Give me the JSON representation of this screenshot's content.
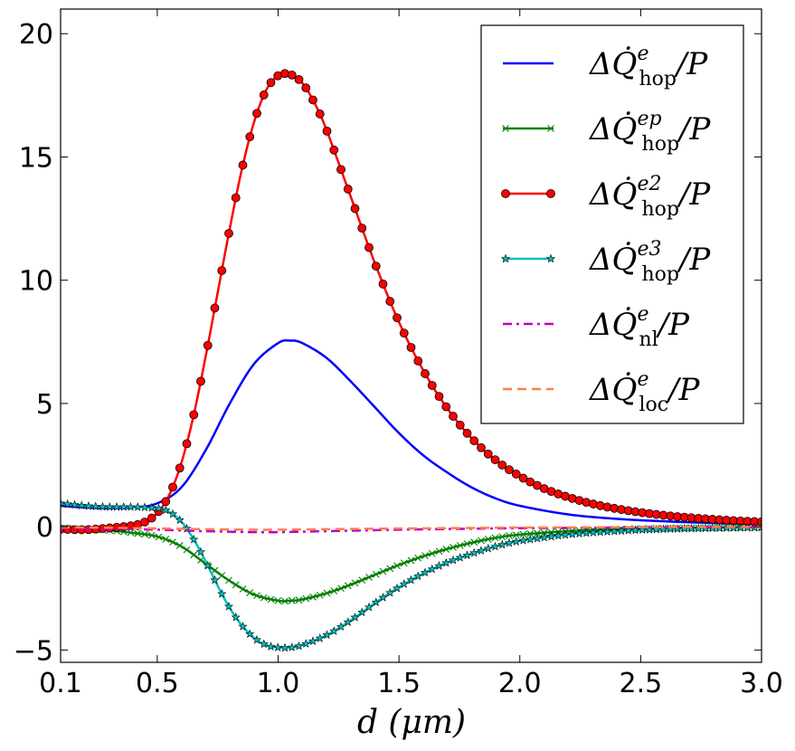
{
  "chart_data": {
    "type": "line",
    "title": "",
    "xlabel": "d (μm)",
    "ylabel": "",
    "xlim": [
      0.1,
      3.0
    ],
    "ylim": [
      -5.5,
      21
    ],
    "x_ticks": [
      0.1,
      0.5,
      1.0,
      1.5,
      2.0,
      2.5,
      3.0
    ],
    "x_tick_labels": [
      "0.1",
      "0.5",
      "1.0",
      "1.5",
      "2.0",
      "2.5",
      "3.0"
    ],
    "y_ticks": [
      -5,
      0,
      5,
      10,
      15,
      20
    ],
    "y_tick_labels": [
      "−5",
      "0",
      "5",
      "10",
      "15",
      "20"
    ],
    "legend_position": "top-right",
    "series": [
      {
        "name": "ΔQ̇^e_hop/P",
        "legend_main": "ΔQ̇",
        "legend_sup": "e",
        "legend_sub": "hop",
        "legend_tail": "/P",
        "color": "#0000ff",
        "style": "solid",
        "marker": "none",
        "x": [
          0.1,
          0.2,
          0.3,
          0.4,
          0.5,
          0.6,
          0.7,
          0.8,
          0.9,
          1.0,
          1.05,
          1.1,
          1.2,
          1.3,
          1.4,
          1.5,
          1.6,
          1.7,
          1.8,
          1.9,
          2.0,
          2.2,
          2.4,
          2.6,
          2.8,
          3.0
        ],
        "y": [
          0.85,
          0.78,
          0.75,
          0.78,
          0.95,
          1.6,
          3.1,
          5.0,
          6.6,
          7.45,
          7.55,
          7.45,
          6.85,
          5.9,
          4.85,
          3.8,
          2.9,
          2.2,
          1.6,
          1.15,
          0.85,
          0.5,
          0.32,
          0.22,
          0.15,
          0.1
        ]
      },
      {
        "name": "ΔQ̇^ep_hop/P",
        "legend_main": "ΔQ̇",
        "legend_sup": "ep",
        "legend_sub": "hop",
        "legend_tail": "/P",
        "color": "#008000",
        "style": "solid",
        "marker": "x",
        "x": [
          0.1,
          0.2,
          0.3,
          0.4,
          0.5,
          0.6,
          0.7,
          0.8,
          0.9,
          1.0,
          1.05,
          1.1,
          1.2,
          1.3,
          1.4,
          1.5,
          1.6,
          1.7,
          1.8,
          1.9,
          2.0,
          2.2,
          2.4,
          2.6,
          2.8,
          3.0
        ],
        "y": [
          -0.05,
          -0.1,
          -0.15,
          -0.25,
          -0.4,
          -0.8,
          -1.5,
          -2.2,
          -2.75,
          -3.0,
          -3.0,
          -2.95,
          -2.7,
          -2.35,
          -1.95,
          -1.55,
          -1.2,
          -0.9,
          -0.65,
          -0.45,
          -0.32,
          -0.18,
          -0.1,
          -0.06,
          -0.04,
          -0.03
        ]
      },
      {
        "name": "ΔQ̇^e2_hop/P",
        "legend_main": "ΔQ̇",
        "legend_sup": "e2",
        "legend_sub": "hop",
        "legend_tail": "/P",
        "color": "#ff0000",
        "style": "solid",
        "marker": "o",
        "x": [
          0.1,
          0.2,
          0.3,
          0.4,
          0.45,
          0.5,
          0.55,
          0.6,
          0.65,
          0.7,
          0.75,
          0.8,
          0.85,
          0.9,
          0.95,
          1.0,
          1.05,
          1.1,
          1.15,
          1.2,
          1.3,
          1.4,
          1.5,
          1.6,
          1.7,
          1.8,
          1.9,
          2.0,
          2.1,
          2.2,
          2.3,
          2.4,
          2.5,
          2.6,
          2.7,
          2.8,
          2.9,
          3.0
        ],
        "y": [
          -0.1,
          -0.12,
          -0.05,
          0.05,
          0.2,
          0.55,
          1.3,
          2.6,
          4.5,
          6.9,
          9.5,
          12.1,
          14.5,
          16.4,
          17.7,
          18.3,
          18.35,
          18.0,
          17.2,
          16.1,
          13.4,
          10.7,
          8.3,
          6.35,
          4.8,
          3.6,
          2.7,
          2.05,
          1.55,
          1.2,
          0.93,
          0.73,
          0.58,
          0.46,
          0.37,
          0.3,
          0.24,
          0.2
        ]
      },
      {
        "name": "ΔQ̇^e3_hop/P",
        "legend_main": "ΔQ̇",
        "legend_sup": "e3",
        "legend_sub": "hop",
        "legend_tail": "/P",
        "color": "#00bfbf",
        "style": "solid",
        "marker": "*",
        "x": [
          0.1,
          0.2,
          0.3,
          0.4,
          0.5,
          0.55,
          0.6,
          0.65,
          0.7,
          0.75,
          0.8,
          0.85,
          0.9,
          0.95,
          1.0,
          1.05,
          1.1,
          1.2,
          1.3,
          1.4,
          1.5,
          1.6,
          1.7,
          1.8,
          1.9,
          2.0,
          2.2,
          2.4,
          2.6,
          2.8,
          3.0
        ],
        "y": [
          0.95,
          0.85,
          0.8,
          0.8,
          0.75,
          0.6,
          0.2,
          -0.5,
          -1.4,
          -2.4,
          -3.3,
          -4.0,
          -4.5,
          -4.8,
          -4.9,
          -4.9,
          -4.8,
          -4.4,
          -3.8,
          -3.1,
          -2.45,
          -1.9,
          -1.45,
          -1.1,
          -0.8,
          -0.58,
          -0.32,
          -0.18,
          -0.1,
          -0.06,
          -0.03
        ]
      },
      {
        "name": "ΔQ̇^e_nl/P",
        "legend_main": "ΔQ̇",
        "legend_sup": "e",
        "legend_sub": "nl",
        "legend_tail": "/P",
        "color": "#bf00bf",
        "style": "dashdot",
        "marker": "none",
        "x": [
          0.1,
          0.3,
          0.5,
          0.7,
          0.9,
          1.0,
          1.1,
          1.3,
          1.5,
          1.8,
          2.0,
          2.5,
          3.0
        ],
        "y": [
          -0.05,
          -0.08,
          -0.12,
          -0.18,
          -0.22,
          -0.22,
          -0.2,
          -0.16,
          -0.12,
          -0.08,
          -0.06,
          -0.03,
          -0.02
        ]
      },
      {
        "name": "ΔQ̇^e_loc/P",
        "legend_main": "ΔQ̇",
        "legend_sup": "e",
        "legend_sub": "loc",
        "legend_tail": "/P",
        "color": "#ff7f50",
        "style": "dashed",
        "marker": "none",
        "x": [
          0.1,
          0.3,
          0.5,
          0.7,
          0.9,
          1.0,
          1.1,
          1.3,
          1.5,
          1.8,
          2.0,
          2.5,
          3.0
        ],
        "y": [
          -0.02,
          -0.04,
          -0.07,
          -0.1,
          -0.12,
          -0.12,
          -0.11,
          -0.09,
          -0.07,
          -0.05,
          -0.03,
          -0.02,
          -0.01
        ]
      }
    ]
  }
}
